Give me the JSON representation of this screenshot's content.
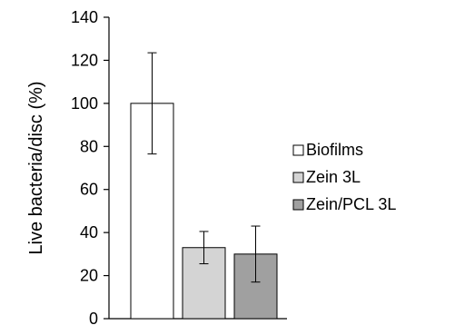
{
  "chart_data": {
    "type": "bar",
    "title": "",
    "xlabel": "",
    "ylabel": "Live bacteria/disc (%)",
    "ylim": [
      0,
      140
    ],
    "yticks": [
      0,
      20,
      40,
      60,
      80,
      100,
      120,
      140
    ],
    "grid": false,
    "legend_position": "right",
    "series": [
      {
        "name": "Biofilms",
        "value": 100,
        "error": 23.5,
        "color": "#ffffff",
        "stroke": "#000000"
      },
      {
        "name": "Zein 3L",
        "value": 33,
        "error": 7.5,
        "color": "#d4d4d4",
        "stroke": "#000000"
      },
      {
        "name": "Zein/PCL 3L",
        "value": 30,
        "error": 13,
        "color": "#a0a0a0",
        "stroke": "#000000"
      }
    ]
  }
}
